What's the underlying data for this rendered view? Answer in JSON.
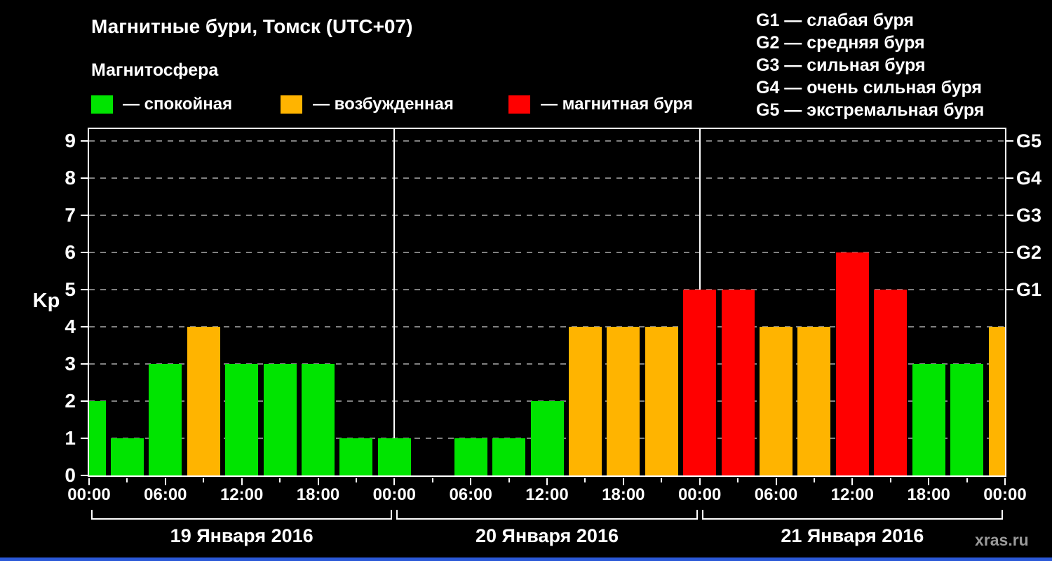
{
  "watermark": "xras.ru",
  "chart_data": {
    "type": "bar",
    "title": "Магнитные бури, Томск (UTC+07)",
    "subtitle": "Магнитосфера",
    "ylabel": "Kp",
    "ylim": [
      0,
      9.4
    ],
    "yticks": [
      0,
      1,
      2,
      3,
      4,
      5,
      6,
      7,
      8,
      9
    ],
    "grid": "dashed-horizontal",
    "interval_hours": 3,
    "legend": {
      "position": "top-left",
      "items": [
        {
          "state": "quiet",
          "label": "— спокойная"
        },
        {
          "state": "excited",
          "label": "— возбужденная"
        },
        {
          "state": "storm",
          "label": "— магнитная буря"
        }
      ]
    },
    "g_scale_legend": [
      "G1 — слабая буря",
      "G2 — средняя буря",
      "G3 — сильная буря",
      "G4 — очень сильная буря",
      "G5 — экстремальная буря"
    ],
    "right_axis_labels": [
      {
        "kp": 5,
        "label": "G1"
      },
      {
        "kp": 6,
        "label": "G2"
      },
      {
        "kp": 7,
        "label": "G3"
      },
      {
        "kp": 8,
        "label": "G4"
      },
      {
        "kp": 9,
        "label": "G5"
      }
    ],
    "x_time_labels": [
      "00:00",
      "06:00",
      "12:00",
      "18:00",
      "00:00",
      "06:00",
      "12:00",
      "18:00",
      "00:00",
      "06:00",
      "12:00",
      "18:00",
      "00:00"
    ],
    "days": [
      {
        "date": "19 Января 2016",
        "kp_values": [
          2,
          1,
          3,
          4,
          3,
          3,
          3,
          1
        ]
      },
      {
        "date": "20 Января 2016",
        "kp_values": [
          1,
          null,
          1,
          1,
          2,
          4,
          4,
          4
        ]
      },
      {
        "date": "21 Января 2016",
        "kp_values": [
          5,
          5,
          4,
          4,
          6,
          5,
          3,
          3
        ]
      }
    ],
    "trailing_kp_value": 4,
    "state_thresholds": {
      "quiet_max_kp": 3,
      "excited_kp": 4,
      "storm_min_kp": 5
    },
    "colors": {
      "quiet": "#00e400",
      "excited": "#ffb400",
      "storm": "#ff0000",
      "axis": "#ffffff",
      "grid": "#808080",
      "background": "#000000",
      "footer_bar": "#2b59d8"
    }
  }
}
